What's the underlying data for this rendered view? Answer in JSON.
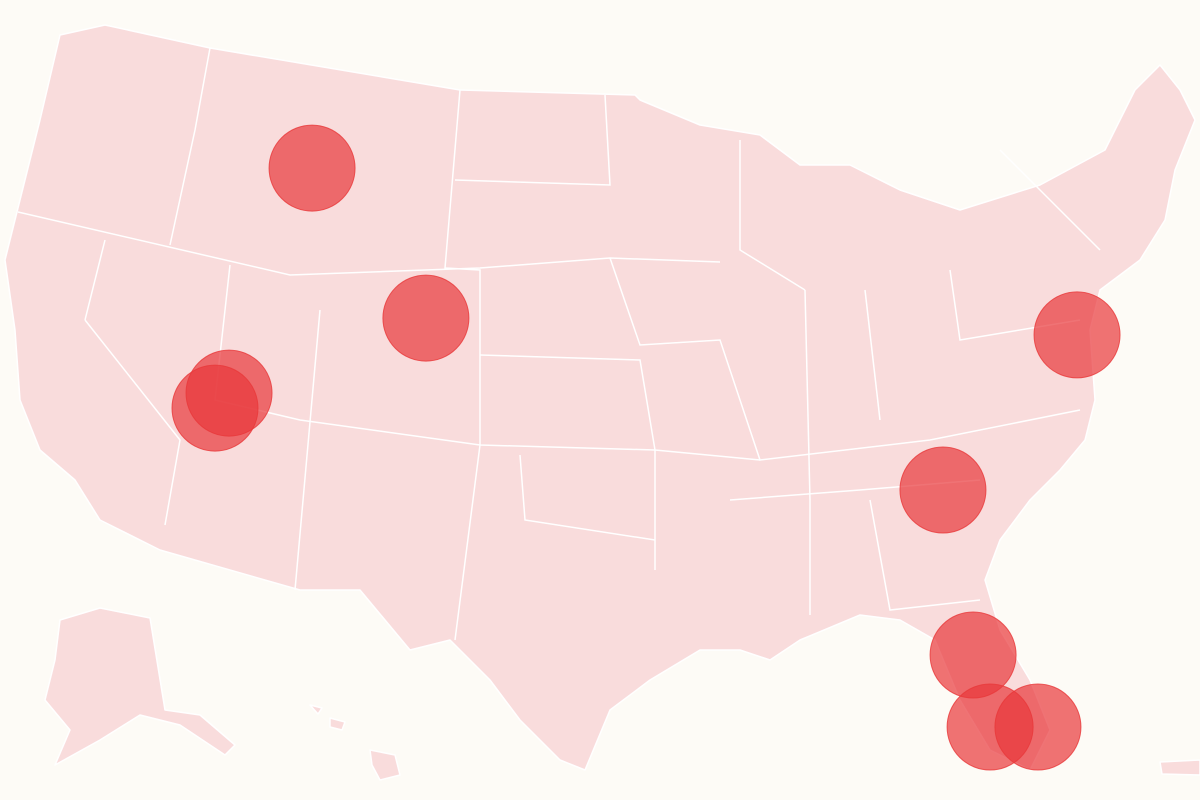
{
  "map": {
    "land_color": "#f9dcdc",
    "background_color": "#fdfbf6",
    "marker_color": "#e8383a",
    "marker_opacity": 0.7,
    "markers": [
      {
        "lon": -111.78,
        "lat": 44.83
      },
      {
        "lon": -106.83,
        "lat": 39.83
      },
      {
        "lon": -115.39,
        "lat": 37.33
      },
      {
        "lon": -116.0,
        "lat": 36.83
      },
      {
        "lon": -78.52,
        "lat": 39.27
      },
      {
        "lon": -84.35,
        "lat": 34.1
      },
      {
        "lon": -83.04,
        "lat": 28.6
      },
      {
        "lon": -82.3,
        "lat": 26.2
      },
      {
        "lon": -80.22,
        "lat": 26.2
      }
    ]
  }
}
